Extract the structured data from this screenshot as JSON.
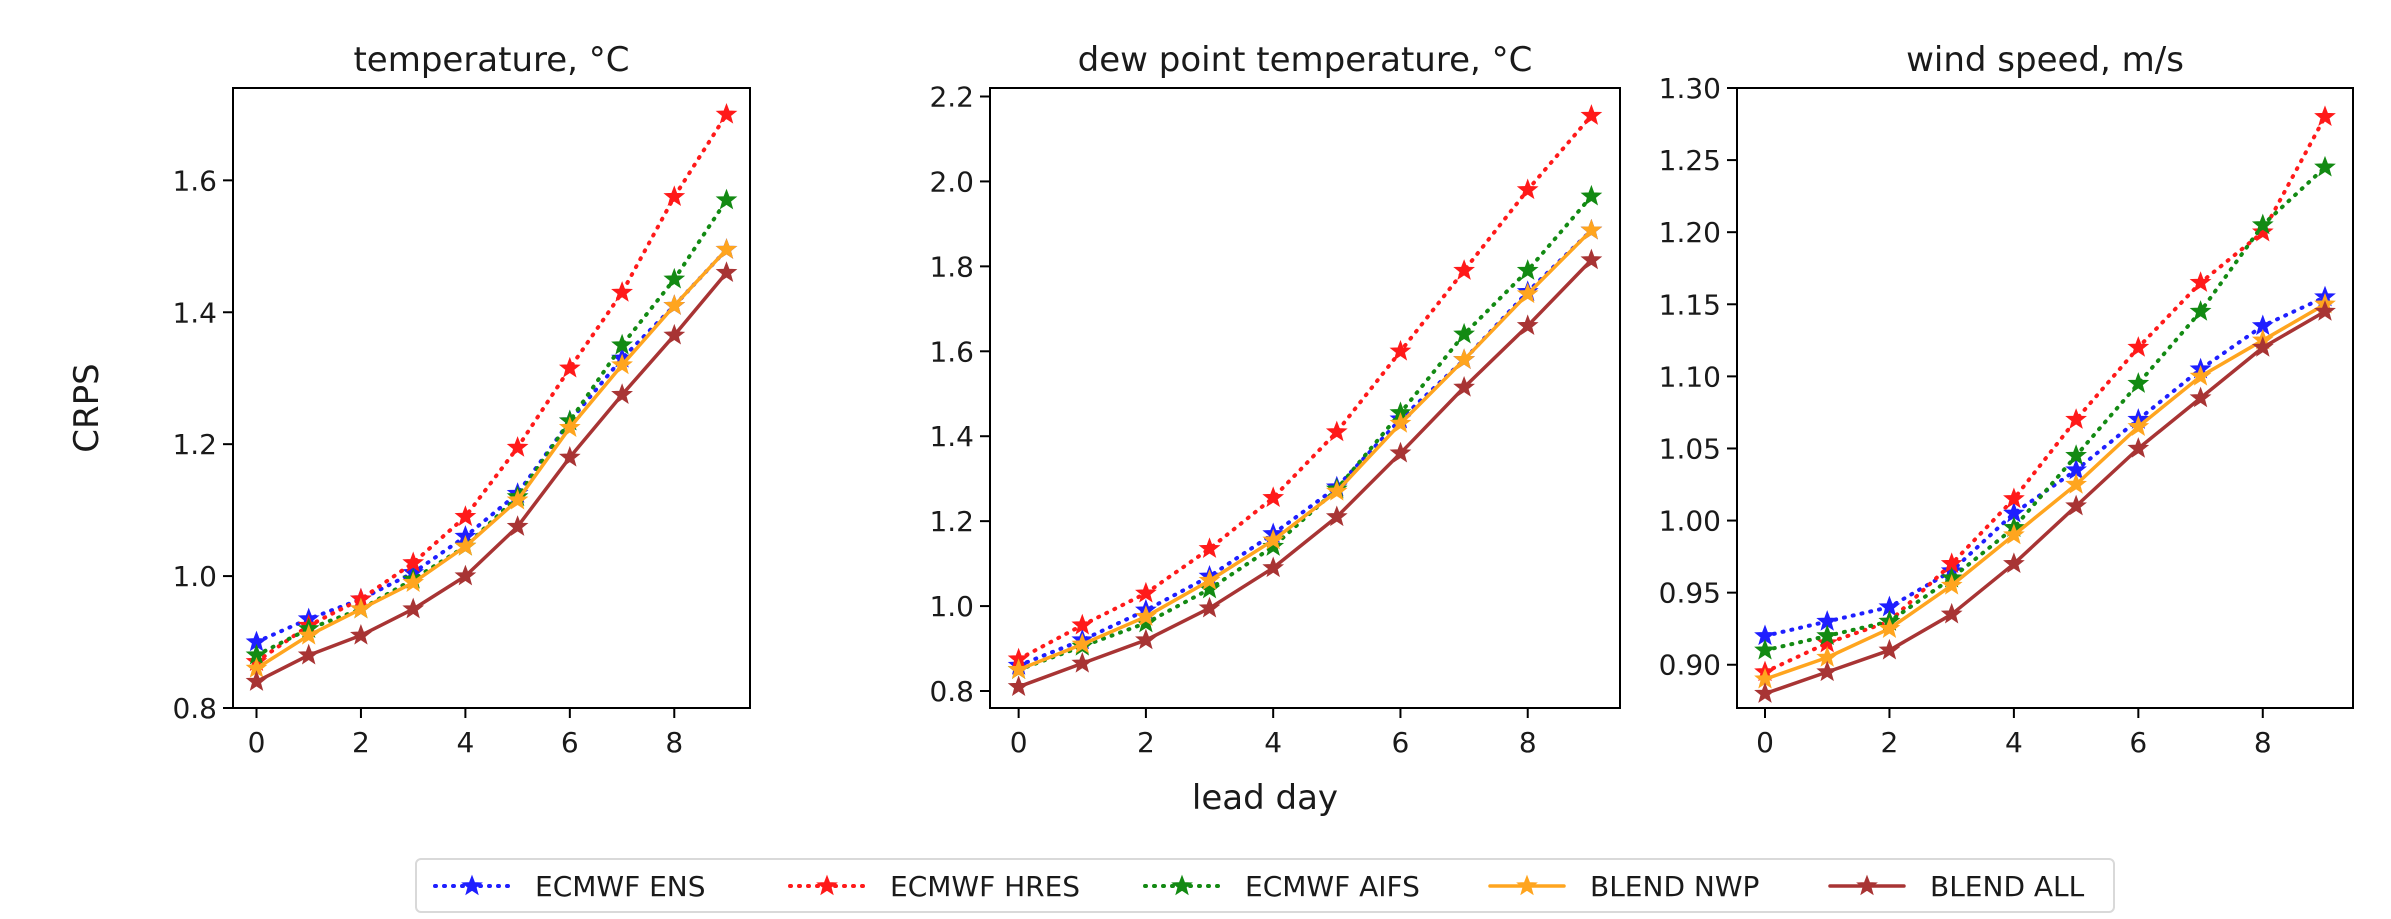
{
  "figure": {
    "y_axis_label": "CRPS",
    "x_axis_label": "lead day"
  },
  "series_styles": [
    {
      "name": "ECMWF ENS",
      "color": "#1f1fff",
      "dash": "dotted",
      "marker": "star"
    },
    {
      "name": "ECMWF HRES",
      "color": "#ff1a1a",
      "dash": "dotted",
      "marker": "star"
    },
    {
      "name": "ECMWF AIFS",
      "color": "#138a13",
      "dash": "dotted",
      "marker": "star"
    },
    {
      "name": "BLEND NWP",
      "color": "#ffa51f",
      "dash": "solid",
      "marker": "star"
    },
    {
      "name": "BLEND ALL",
      "color": "#a83434",
      "dash": "solid",
      "marker": "star"
    }
  ],
  "legend": {
    "placement": "bottom-center",
    "entries": [
      "ECMWF ENS",
      "ECMWF HRES",
      "ECMWF AIFS",
      "BLEND NWP",
      "BLEND ALL"
    ]
  },
  "chart_data": [
    {
      "type": "line",
      "title": "temperature, °C",
      "xlabel": "lead day",
      "ylabel": "CRPS",
      "x": [
        0,
        1,
        2,
        3,
        4,
        5,
        6,
        7,
        8,
        9
      ],
      "xticks": [
        "0",
        "2",
        "4",
        "6",
        "8"
      ],
      "xtick_values": [
        0,
        2,
        4,
        6,
        8
      ],
      "xlim": [
        -0.45,
        9.45
      ],
      "ylim": [
        0.8,
        1.74
      ],
      "yticks": [
        "0.8",
        "1.0",
        "1.2",
        "1.4",
        "1.6"
      ],
      "ytick_values": [
        0.8,
        1.0,
        1.2,
        1.4,
        1.6
      ],
      "grid": false,
      "series": [
        {
          "name": "ECMWF ENS",
          "values": [
            0.9,
            0.935,
            0.965,
            1.005,
            1.06,
            1.125,
            1.235,
            1.33,
            1.41,
            1.495
          ]
        },
        {
          "name": "ECMWF HRES",
          "values": [
            0.87,
            0.925,
            0.965,
            1.02,
            1.09,
            1.195,
            1.315,
            1.43,
            1.575,
            1.7
          ]
        },
        {
          "name": "ECMWF AIFS",
          "values": [
            0.88,
            0.92,
            0.95,
            0.995,
            1.045,
            1.12,
            1.235,
            1.35,
            1.45,
            1.57
          ]
        },
        {
          "name": "BLEND NWP",
          "values": [
            0.86,
            0.91,
            0.95,
            0.99,
            1.045,
            1.115,
            1.225,
            1.32,
            1.41,
            1.495
          ]
        },
        {
          "name": "BLEND ALL",
          "values": [
            0.84,
            0.88,
            0.91,
            0.95,
            1.0,
            1.075,
            1.18,
            1.275,
            1.365,
            1.46
          ]
        }
      ]
    },
    {
      "type": "line",
      "title": "dew point temperature, °C",
      "xlabel": "lead day",
      "ylabel": "",
      "x": [
        0,
        1,
        2,
        3,
        4,
        5,
        6,
        7,
        8,
        9
      ],
      "xticks": [
        "0",
        "2",
        "4",
        "6",
        "8"
      ],
      "xtick_values": [
        0,
        2,
        4,
        6,
        8
      ],
      "xlim": [
        -0.45,
        9.45
      ],
      "ylim": [
        0.76,
        2.22
      ],
      "yticks": [
        "0.8",
        "1.0",
        "1.2",
        "1.4",
        "1.6",
        "1.8",
        "2.0",
        "2.2"
      ],
      "ytick_values": [
        0.8,
        1.0,
        1.2,
        1.4,
        1.6,
        1.8,
        2.0,
        2.2
      ],
      "grid": false,
      "series": [
        {
          "name": "ECMWF ENS",
          "values": [
            0.86,
            0.92,
            0.99,
            1.07,
            1.17,
            1.28,
            1.44,
            1.58,
            1.74,
            1.885
          ]
        },
        {
          "name": "ECMWF HRES",
          "values": [
            0.875,
            0.955,
            1.03,
            1.135,
            1.255,
            1.41,
            1.6,
            1.79,
            1.98,
            2.155
          ]
        },
        {
          "name": "ECMWF AIFS",
          "values": [
            0.85,
            0.905,
            0.96,
            1.04,
            1.14,
            1.275,
            1.455,
            1.64,
            1.79,
            1.965
          ]
        },
        {
          "name": "BLEND NWP",
          "values": [
            0.85,
            0.91,
            0.975,
            1.06,
            1.155,
            1.27,
            1.43,
            1.58,
            1.735,
            1.885
          ]
        },
        {
          "name": "BLEND ALL",
          "values": [
            0.81,
            0.865,
            0.92,
            0.995,
            1.09,
            1.21,
            1.36,
            1.515,
            1.66,
            1.815
          ]
        }
      ]
    },
    {
      "type": "line",
      "title": "wind speed, m/s",
      "xlabel": "lead day",
      "ylabel": "",
      "x": [
        0,
        1,
        2,
        3,
        4,
        5,
        6,
        7,
        8,
        9
      ],
      "xticks": [
        "0",
        "2",
        "4",
        "6",
        "8"
      ],
      "xtick_values": [
        0,
        2,
        4,
        6,
        8
      ],
      "xlim": [
        -0.45,
        9.45
      ],
      "ylim": [
        0.87,
        1.3
      ],
      "yticks": [
        "0.90",
        "0.95",
        "1.00",
        "1.05",
        "1.10",
        "1.15",
        "1.20",
        "1.25",
        "1.30"
      ],
      "ytick_values": [
        0.9,
        0.95,
        1.0,
        1.05,
        1.1,
        1.15,
        1.2,
        1.25,
        1.3
      ],
      "grid": false,
      "series": [
        {
          "name": "ECMWF ENS",
          "values": [
            0.92,
            0.93,
            0.94,
            0.965,
            1.005,
            1.035,
            1.07,
            1.105,
            1.135,
            1.155
          ]
        },
        {
          "name": "ECMWF HRES",
          "values": [
            0.895,
            0.915,
            0.93,
            0.97,
            1.015,
            1.07,
            1.12,
            1.165,
            1.2,
            1.28
          ]
        },
        {
          "name": "ECMWF AIFS",
          "values": [
            0.91,
            0.92,
            0.93,
            0.96,
            0.995,
            1.045,
            1.095,
            1.145,
            1.205,
            1.245
          ]
        },
        {
          "name": "BLEND NWP",
          "values": [
            0.89,
            0.905,
            0.925,
            0.955,
            0.99,
            1.025,
            1.065,
            1.1,
            1.125,
            1.15
          ]
        },
        {
          "name": "BLEND ALL",
          "values": [
            0.88,
            0.895,
            0.91,
            0.935,
            0.97,
            1.01,
            1.05,
            1.085,
            1.12,
            1.145
          ]
        }
      ]
    }
  ]
}
